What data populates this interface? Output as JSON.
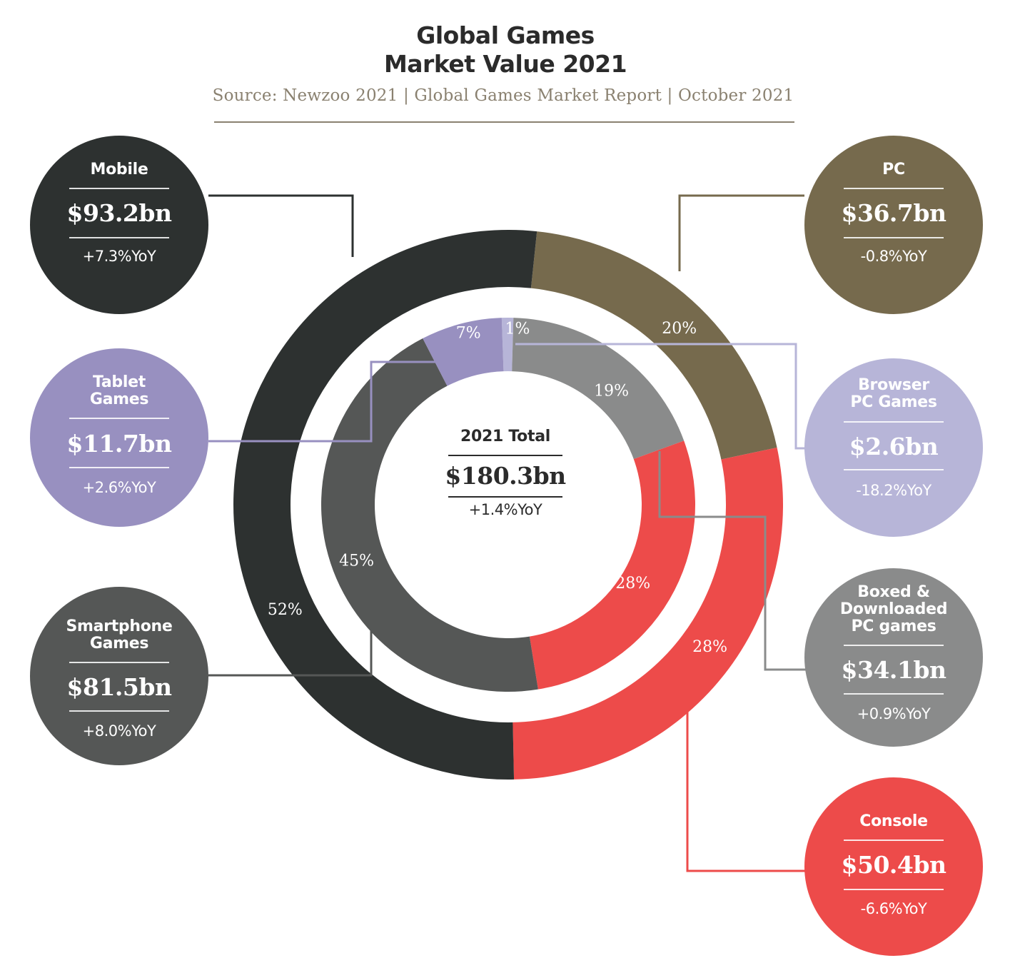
{
  "title_line1": "Global Games",
  "title_line2": "Market Value 2021",
  "source": "Source: Newzoo 2021 | Global Games Market Report | October 2021",
  "total": {
    "label": "2021 Total",
    "value": "$180.3bn",
    "yoy": "+1.4%YoY"
  },
  "segments": {
    "mobile": {
      "name": "Mobile",
      "value": "$93.2bn",
      "yoy": "+7.3%YoY"
    },
    "tablet": {
      "name_line1": "Tablet",
      "name_line2": "Games",
      "value": "$11.7bn",
      "yoy": "+2.6%YoY"
    },
    "smartphone": {
      "name_line1": "Smartphone",
      "name_line2": "Games",
      "value": "$81.5bn",
      "yoy": "+8.0%YoY"
    },
    "pc": {
      "name": "PC",
      "value": "$36.7bn",
      "yoy": "-0.8%YoY"
    },
    "browser": {
      "name_line1": "Browser",
      "name_line2": "PC Games",
      "value": "$2.6bn",
      "yoy": "-18.2%YoY"
    },
    "boxed": {
      "name_line1": "Boxed &",
      "name_line2": "Downloaded",
      "name_line3": "PC games",
      "value": "$34.1bn",
      "yoy": "+0.9%YoY"
    },
    "console": {
      "name": "Console",
      "value": "$50.4bn",
      "yoy": "-6.6%YoY"
    }
  },
  "colors": {
    "mobile": "#2d3130",
    "smartphone": "#555756",
    "tablet": "#9890c0",
    "pc": "#766a4d",
    "browser": "#b7b5d8",
    "boxed": "#8a8b8b",
    "console": "#ed4b4a",
    "text_dark": "#2b2b2b",
    "source": "#8a8170"
  },
  "chart_data": {
    "type": "pie",
    "title": "Global Games Market Value 2021",
    "rings": [
      {
        "ring": "outer",
        "slices": [
          {
            "label": "PC",
            "percent": 20,
            "value_bn": 36.7,
            "color": "#766a4d"
          },
          {
            "label": "Console",
            "percent": 28,
            "value_bn": 50.4,
            "color": "#ed4b4a"
          },
          {
            "label": "Mobile",
            "percent": 52,
            "value_bn": 93.2,
            "color": "#2d3130"
          }
        ]
      },
      {
        "ring": "inner",
        "slices": [
          {
            "label": "Browser PC Games",
            "percent": 1,
            "value_bn": 2.6,
            "color": "#b7b5d8"
          },
          {
            "label": "Boxed & Downloaded PC games",
            "percent": 19,
            "value_bn": 34.1,
            "color": "#8a8b8b"
          },
          {
            "label": "Console",
            "percent": 28,
            "value_bn": 50.4,
            "color": "#ed4b4a"
          },
          {
            "label": "Smartphone Games",
            "percent": 45,
            "value_bn": 81.5,
            "color": "#555756"
          },
          {
            "label": "Tablet Games",
            "percent": 7,
            "value_bn": 11.7,
            "color": "#9890c0"
          }
        ]
      }
    ],
    "percent_labels": {
      "outer": [
        "20%",
        "28%",
        "52%"
      ],
      "inner": [
        "1%",
        "19%",
        "28%",
        "45%",
        "7%"
      ]
    }
  }
}
